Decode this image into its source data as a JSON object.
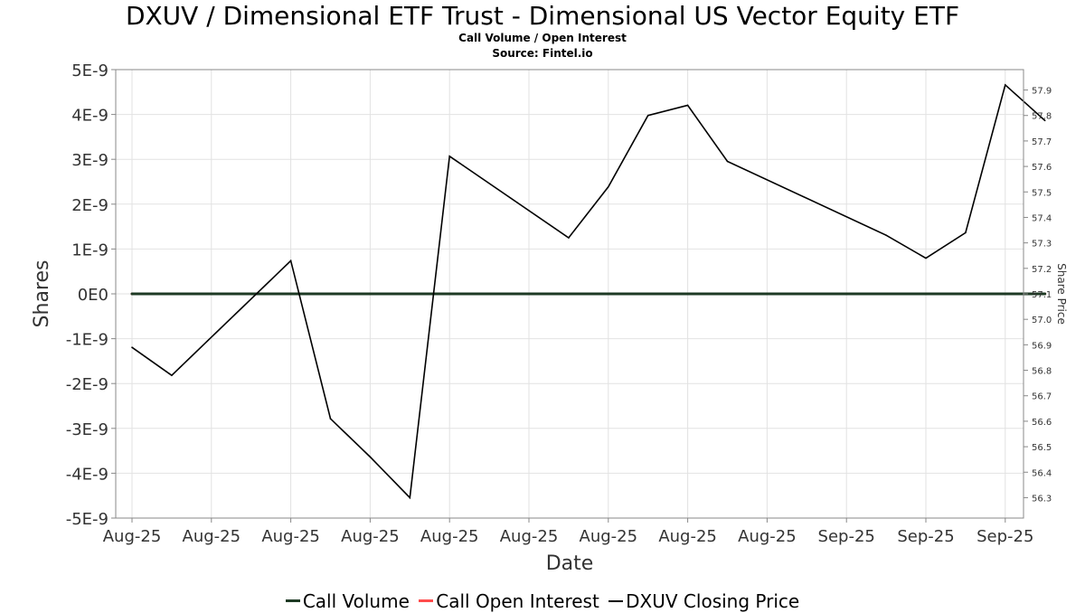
{
  "chart_data": {
    "type": "line",
    "title": "DXUV / Dimensional ETF Trust - Dimensional US Vector Equity ETF",
    "subtitle": "Call Volume / Open Interest",
    "source": "Source: Fintel.io",
    "xlabel": "Date",
    "ylabel": "Shares",
    "y2label": "Share Price",
    "x_ticks": [
      "Aug-25",
      "Aug-25",
      "Aug-25",
      "Aug-25",
      "Aug-25",
      "Aug-25",
      "Aug-25",
      "Aug-25",
      "Aug-25",
      "Sep-25",
      "Sep-25",
      "Sep-25"
    ],
    "ylim": [
      -5e-09,
      5e-09
    ],
    "y_ticks": [
      "-5E-9",
      "-4E-9",
      "-3E-9",
      "-2E-9",
      "-1E-9",
      "0E0",
      "1E-9",
      "2E-9",
      "3E-9",
      "4E-9",
      "5E-9"
    ],
    "y_tick_values": [
      -5e-09,
      -4e-09,
      -3e-09,
      -2e-09,
      -1e-09,
      0,
      1e-09,
      2e-09,
      3e-09,
      4e-09,
      5e-09
    ],
    "y2lim": [
      56.22,
      57.98
    ],
    "y2_ticks": [
      "56.3",
      "56.4",
      "56.5",
      "56.6",
      "56.7",
      "56.8",
      "56.9",
      "57.0",
      "57.1",
      "57.2",
      "57.3",
      "57.4",
      "57.5",
      "57.6",
      "57.7",
      "57.8",
      "57.9"
    ],
    "y2_tick_values": [
      56.3,
      56.4,
      56.5,
      56.6,
      56.7,
      56.8,
      56.9,
      57.0,
      57.1,
      57.2,
      57.3,
      57.4,
      57.5,
      57.6,
      57.7,
      57.8,
      57.9
    ],
    "grid": true,
    "legend_position": "bottom-center",
    "series": [
      {
        "name": "Call Volume",
        "axis": "left",
        "color": "#1e3a24",
        "values": [
          0,
          0,
          0,
          0,
          0,
          0,
          0,
          0,
          0,
          0,
          0,
          0,
          0,
          0,
          0,
          0,
          0,
          0,
          0,
          0,
          0,
          0,
          0,
          0
        ]
      },
      {
        "name": "Call Open Interest",
        "axis": "left",
        "color": "#ff4c4c",
        "values": [
          0,
          0,
          0,
          0,
          0,
          0,
          0,
          0,
          0,
          0,
          0,
          0,
          0,
          0,
          0,
          0,
          0,
          0,
          0,
          0,
          0,
          0,
          0,
          0
        ]
      },
      {
        "name": "DXUV Closing Price",
        "axis": "right",
        "color": "#000000",
        "points": [
          {
            "i": 0,
            "v": 56.89
          },
          {
            "i": 1,
            "v": 56.78
          },
          {
            "i": 4,
            "v": 57.23
          },
          {
            "i": 5,
            "v": 56.61
          },
          {
            "i": 6,
            "v": 56.46
          },
          {
            "i": 7,
            "v": 56.3
          },
          {
            "i": 8,
            "v": 57.64
          },
          {
            "i": 11,
            "v": 57.32
          },
          {
            "i": 12,
            "v": 57.52
          },
          {
            "i": 13,
            "v": 57.8
          },
          {
            "i": 14,
            "v": 57.84
          },
          {
            "i": 15,
            "v": 57.62
          },
          {
            "i": 19,
            "v": 57.33
          },
          {
            "i": 20,
            "v": 57.24
          },
          {
            "i": 21,
            "v": 57.34
          },
          {
            "i": 22,
            "v": 57.92
          },
          {
            "i": 23,
            "v": 57.78
          }
        ]
      }
    ]
  }
}
